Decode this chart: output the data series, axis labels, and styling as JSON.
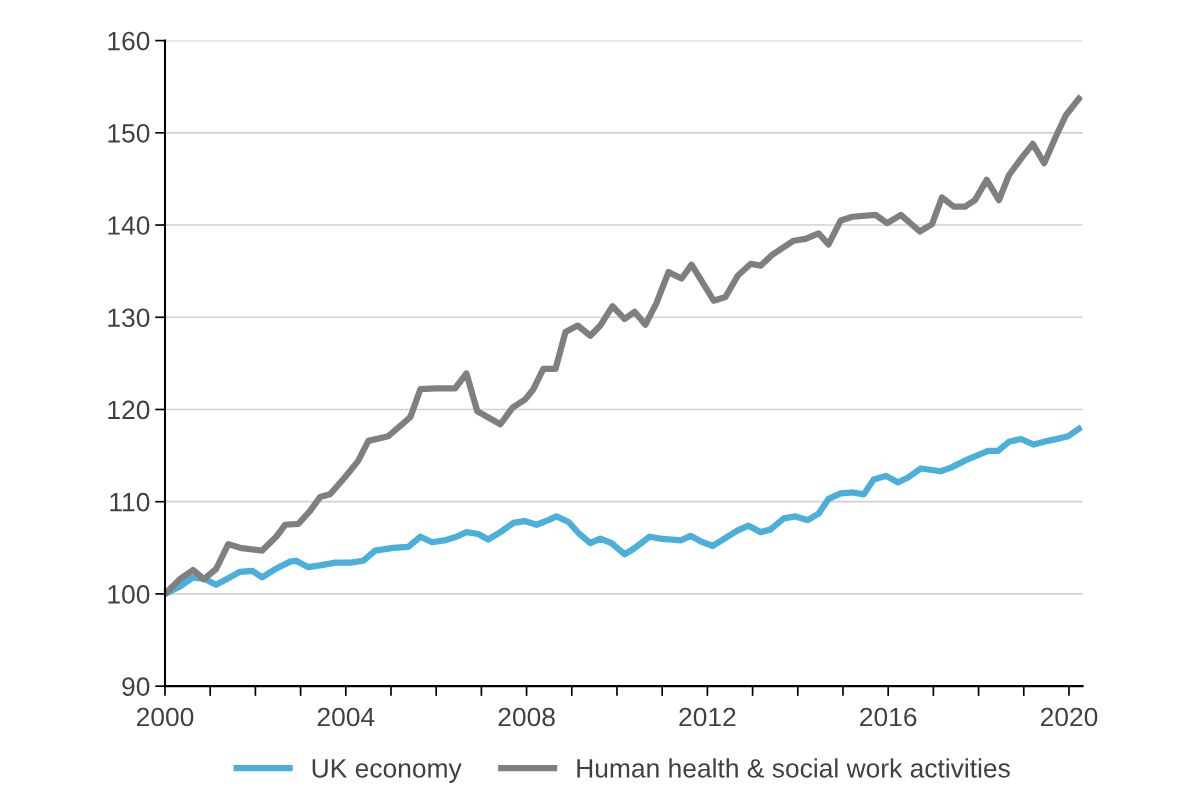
{
  "chart_data": {
    "type": "line",
    "xlim": [
      2000,
      2020.3
    ],
    "ylim": [
      90,
      160
    ],
    "yticks": [
      90,
      100,
      110,
      120,
      130,
      140,
      150,
      160
    ],
    "xticks": [
      2000,
      {
        "value": 2001,
        "label": null
      },
      {
        "value": 2002,
        "label": null
      },
      {
        "value": 2003,
        "label": null
      },
      2004,
      {
        "value": 2005,
        "label": null
      },
      {
        "value": 2006,
        "label": null
      },
      {
        "value": 2007,
        "label": null
      },
      2008,
      {
        "value": 2009,
        "label": null
      },
      {
        "value": 2010,
        "label": null
      },
      {
        "value": 2011,
        "label": null
      },
      2012,
      {
        "value": 2013,
        "label": null
      },
      {
        "value": 2014,
        "label": null
      },
      {
        "value": 2015,
        "label": null
      },
      2016,
      {
        "value": 2017,
        "label": null
      },
      {
        "value": 2018,
        "label": null
      },
      {
        "value": 2019,
        "label": null
      },
      2020
    ],
    "grid": "y",
    "legend": "bottom",
    "marker": "none",
    "line_style": "solid",
    "series": [
      {
        "name": "UK economy",
        "color": "#4bafdc",
        "x": [
          2000,
          2000.33,
          2000.62,
          2000.89,
          2001.13,
          2001.4,
          2001.66,
          2001.93,
          2002.15,
          2002.44,
          2002.77,
          2002.9,
          2003.17,
          2003.43,
          2003.77,
          2004.1,
          2004.39,
          2004.65,
          2005.05,
          2005.38,
          2005.65,
          2005.91,
          2006.18,
          2006.45,
          2006.67,
          2006.93,
          2007.15,
          2007.42,
          2007.71,
          2007.95,
          2008.22,
          2008.48,
          2008.66,
          2008.93,
          2009.15,
          2009.41,
          2009.63,
          2009.88,
          2010.17,
          2010.37,
          2010.72,
          2010.96,
          2011.41,
          2011.63,
          2011.85,
          2012.12,
          2012.67,
          2012.91,
          2013.18,
          2013.4,
          2013.69,
          2013.95,
          2014.22,
          2014.46,
          2014.68,
          2014.95,
          2015.22,
          2015.46,
          2015.68,
          2015.95,
          2016.21,
          2016.43,
          2016.72,
          2017.16,
          2017.39,
          2017.76,
          2018.21,
          2018.43,
          2018.67,
          2018.94,
          2019.22,
          2019.53,
          2019.82,
          2019.98,
          2020.22
        ],
        "values": [
          100,
          100.8,
          101.8,
          101.6,
          101.0,
          101.7,
          102.4,
          102.5,
          101.8,
          102.7,
          103.5,
          103.6,
          102.9,
          103.1,
          103.4,
          103.4,
          103.6,
          104.7,
          105.0,
          105.1,
          106.2,
          105.6,
          105.8,
          106.2,
          106.7,
          106.5,
          105.9,
          106.7,
          107.7,
          107.9,
          107.5,
          108.0,
          108.4,
          107.8,
          106.6,
          105.5,
          106.0,
          105.5,
          104.3,
          104.9,
          106.2,
          106.0,
          105.8,
          106.3,
          105.7,
          105.2,
          106.9,
          107.4,
          106.7,
          107.0,
          108.2,
          108.4,
          108.0,
          108.7,
          110.3,
          110.9,
          111.0,
          110.8,
          112.4,
          112.8,
          112.1,
          112.6,
          113.6,
          113.3,
          113.7,
          114.6,
          115.5,
          115.5,
          116.5,
          116.8,
          116.2,
          116.6,
          116.9,
          117.1,
          117.9
        ]
      },
      {
        "name": "Human health & social work activities",
        "color": "#7f7f7f",
        "x": [
          2000,
          2000.33,
          2000.62,
          2000.86,
          2001.13,
          2001.4,
          2001.66,
          2002.15,
          2002.46,
          2002.66,
          2002.95,
          2003.21,
          2003.43,
          2003.65,
          2003.99,
          2004.27,
          2004.5,
          2004.94,
          2005.25,
          2005.43,
          2005.65,
          2006.0,
          2006.42,
          2006.67,
          2006.91,
          2007.42,
          2007.69,
          2007.97,
          2008.15,
          2008.37,
          2008.64,
          2008.86,
          2009.13,
          2009.41,
          2009.63,
          2009.9,
          2010.17,
          2010.39,
          2010.63,
          2010.87,
          2011.14,
          2011.43,
          2011.65,
          2012.14,
          2012.4,
          2012.67,
          2012.96,
          2013.18,
          2013.44,
          2013.91,
          2014.17,
          2014.46,
          2014.68,
          2014.95,
          2015.21,
          2015.72,
          2015.98,
          2016.28,
          2016.7,
          2016.97,
          2017.19,
          2017.45,
          2017.7,
          2017.92,
          2018.18,
          2018.45,
          2018.67,
          2018.94,
          2019.2,
          2019.45,
          2019.71,
          2019.93,
          2020.22
        ],
        "values": [
          100,
          101.6,
          102.6,
          101.6,
          102.7,
          105.4,
          105.0,
          104.7,
          106.2,
          107.5,
          107.6,
          109.0,
          110.5,
          110.8,
          112.7,
          114.4,
          116.6,
          117.1,
          118.4,
          119.2,
          122.2,
          122.3,
          122.3,
          123.9,
          119.8,
          118.4,
          120.2,
          121.1,
          122.2,
          124.4,
          124.4,
          128.4,
          129.1,
          128.0,
          129.1,
          131.2,
          129.8,
          130.6,
          129.2,
          131.5,
          134.9,
          134.2,
          135.7,
          131.8,
          132.2,
          134.5,
          135.8,
          135.6,
          136.8,
          138.3,
          138.5,
          139.1,
          137.9,
          140.5,
          140.9,
          141.1,
          140.2,
          141.1,
          139.3,
          140.1,
          143.0,
          142.0,
          142.0,
          142.7,
          144.9,
          142.7,
          145.4,
          147.2,
          148.8,
          146.7,
          149.6,
          151.9,
          153.7
        ]
      }
    ]
  }
}
